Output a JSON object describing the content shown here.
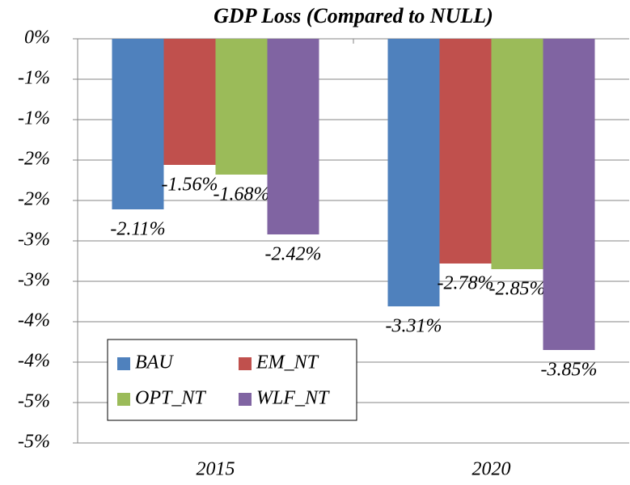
{
  "chart_data": {
    "type": "bar",
    "title": "GDP Loss (Compared to NULL)",
    "categories": [
      "2015",
      "2020"
    ],
    "series": [
      {
        "name": "BAU",
        "color": "#4f81bd",
        "values": [
          -2.11,
          -3.31
        ],
        "value_labels": [
          "-2.11%",
          "-3.31%"
        ]
      },
      {
        "name": "EM_NT",
        "color": "#c0504d",
        "values": [
          -1.56,
          -2.78
        ],
        "value_labels": [
          "-1.56%",
          "-2.78%"
        ]
      },
      {
        "name": "OPT_NT",
        "color": "#9bbb59",
        "values": [
          -1.68,
          -2.85
        ],
        "value_labels": [
          "-1.68%",
          "-2.85%"
        ]
      },
      {
        "name": "WLF_NT",
        "color": "#8064a2",
        "values": [
          -2.42,
          -3.85
        ],
        "value_labels": [
          "-2.42%",
          "-3.85%"
        ]
      }
    ],
    "ylim": [
      -5,
      0
    ],
    "yticks": [
      {
        "value": 0,
        "label": "0%"
      },
      {
        "value": -0.5,
        "label": "-1%"
      },
      {
        "value": -1,
        "label": "-1%"
      },
      {
        "value": -1.5,
        "label": "-2%"
      },
      {
        "value": -2,
        "label": "-2%"
      },
      {
        "value": -2.5,
        "label": "-3%"
      },
      {
        "value": -3,
        "label": "-3%"
      },
      {
        "value": -3.5,
        "label": "-4%"
      },
      {
        "value": -4,
        "label": "-4%"
      },
      {
        "value": -4.5,
        "label": "-5%"
      },
      {
        "value": -5,
        "label": "-5%"
      }
    ],
    "grid": true,
    "legend": "lower left"
  }
}
